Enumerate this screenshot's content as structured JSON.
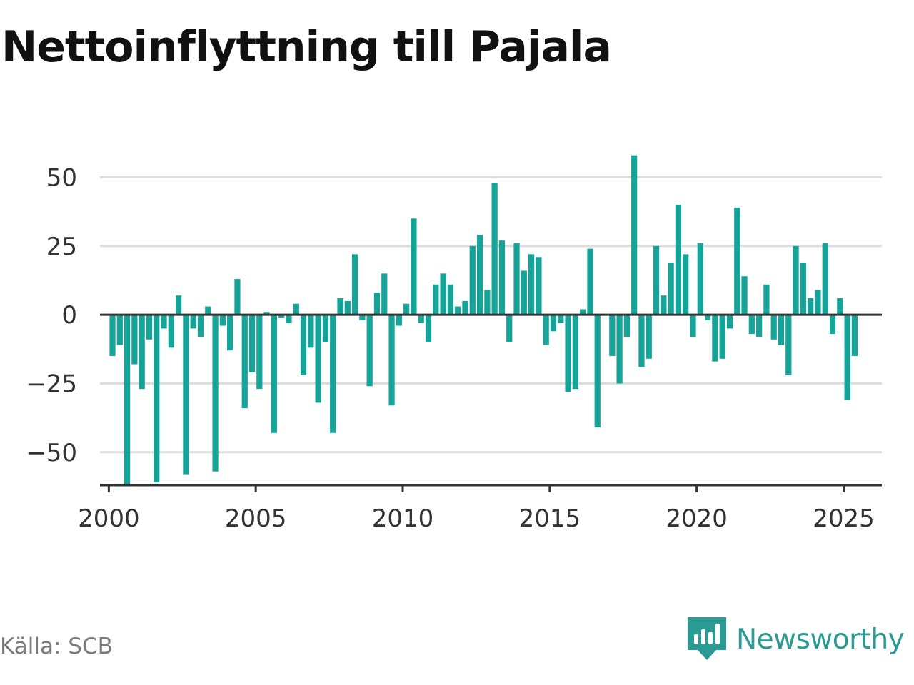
{
  "chart_data": {
    "type": "bar",
    "title": "Nettoinflyttning till Pajala",
    "source": "Källa: SCB",
    "brand": "Newsworthy",
    "bar_color": "#16a398",
    "ylim": [
      -62,
      60
    ],
    "yticks": [
      50,
      25,
      0,
      -25,
      -50
    ],
    "ytick_labels": [
      "50",
      "25",
      "0",
      "−25",
      "−50"
    ],
    "xlim": [
      1999.7,
      2026.3
    ],
    "xticks": [
      2000,
      2005,
      2010,
      2015,
      2020,
      2025
    ],
    "xtick_labels": [
      "2000",
      "2005",
      "2010",
      "2015",
      "2020",
      "2025"
    ],
    "grid": true,
    "x": [
      2000.125,
      2000.375,
      2000.625,
      2000.875,
      2001.125,
      2001.375,
      2001.625,
      2001.875,
      2002.125,
      2002.375,
      2002.625,
      2002.875,
      2003.125,
      2003.375,
      2003.625,
      2003.875,
      2004.125,
      2004.375,
      2004.625,
      2004.875,
      2005.125,
      2005.375,
      2005.625,
      2005.875,
      2006.125,
      2006.375,
      2006.625,
      2006.875,
      2007.125,
      2007.375,
      2007.625,
      2007.875,
      2008.125,
      2008.375,
      2008.625,
      2008.875,
      2009.125,
      2009.375,
      2009.625,
      2009.875,
      2010.125,
      2010.375,
      2010.625,
      2010.875,
      2011.125,
      2011.375,
      2011.625,
      2011.875,
      2012.125,
      2012.375,
      2012.625,
      2012.875,
      2013.125,
      2013.375,
      2013.625,
      2013.875,
      2014.125,
      2014.375,
      2014.625,
      2014.875,
      2015.125,
      2015.375,
      2015.625,
      2015.875,
      2016.125,
      2016.375,
      2016.625,
      2016.875,
      2017.125,
      2017.375,
      2017.625,
      2017.875,
      2018.125,
      2018.375,
      2018.625,
      2018.875,
      2019.125,
      2019.375,
      2019.625,
      2019.875,
      2020.125,
      2020.375,
      2020.625,
      2020.875,
      2021.125,
      2021.375,
      2021.625,
      2021.875,
      2022.125,
      2022.375,
      2022.625,
      2022.875,
      2023.125,
      2023.375,
      2023.625,
      2023.875,
      2024.125,
      2024.375,
      2024.625,
      2024.875,
      2025.125,
      2025.375
    ],
    "values": [
      -15,
      -11,
      -62,
      -18,
      -27,
      -9,
      -61,
      -5,
      -12,
      7,
      -58,
      -5,
      -8,
      3,
      -57,
      -4,
      -13,
      13,
      -34,
      -21,
      -27,
      1,
      -43,
      -1,
      -3,
      4,
      -22,
      -12,
      -32,
      -10,
      -43,
      6,
      5,
      22,
      -2,
      -26,
      8,
      15,
      -33,
      -4,
      4,
      35,
      -3,
      -10,
      11,
      15,
      11,
      3,
      5,
      25,
      29,
      9,
      48,
      27,
      -10,
      26,
      16,
      22,
      21,
      -11,
      -6,
      -3,
      -28,
      -27,
      2,
      24,
      -41,
      0,
      -15,
      -25,
      -8,
      58,
      -19,
      -16,
      25,
      7,
      19,
      40,
      22,
      -8,
      26,
      -2,
      -17,
      -16,
      -5,
      39,
      14,
      -7,
      -8,
      11,
      -9,
      -11,
      -22,
      25,
      19,
      6,
      9,
      26,
      -7,
      6,
      -31,
      -15
    ]
  }
}
